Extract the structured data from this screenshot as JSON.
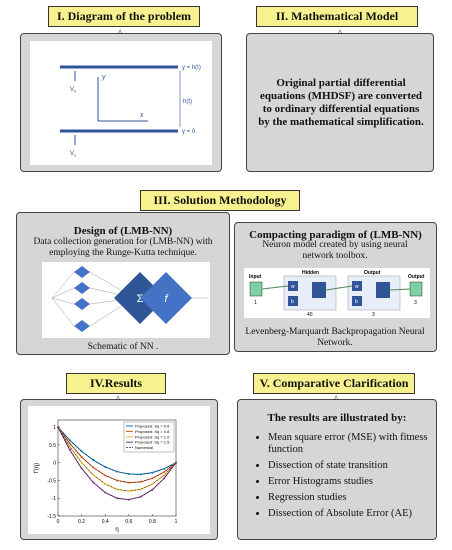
{
  "panels": {
    "problem": {
      "title": "I. Diagram of the problem",
      "top_label": "y = h(t)",
      "bottom_label": "y = 0",
      "gap_label": "h(t)",
      "y_axis": "y",
      "x_axis": "x",
      "top_velocity": {
        "symbol": "V",
        "subscript": "h"
      },
      "bottom_velocity": {
        "symbol": "V",
        "subscript": "o"
      }
    },
    "model": {
      "title": "II. Mathematical Model",
      "text": "Original partial differential equations (MHDSF) are converted to ordinary differential equations by the mathematical simplification."
    },
    "methodology": {
      "title": "III. Solution Methodology",
      "design": {
        "heading": "Design of (LMB-NN)",
        "text": "Data collection generation for (LMB-NN) with employing the Runge-Kutta technique.",
        "sum_symbol": "Σ",
        "activation_symbol": "f",
        "caption": "Schematic of NN ."
      },
      "paradigm": {
        "heading": "Compacting paradigm of (LMB-NN)",
        "text": "Neuron model created by using neural network toolbox.",
        "input_label": "Input",
        "hidden_label": "Hidden",
        "output_layer_label": "Output",
        "output_label": "Output",
        "weight": "w",
        "bias": "b",
        "input_size": "1",
        "hidden_size": "40",
        "output_layer_size": "3",
        "output_size": "3",
        "caption": "Levenberg-Marquardt Backpropagation Neural Network."
      }
    },
    "results": {
      "title": "IV.Results",
      "plot": {
        "xlabel": "η",
        "ylabel": "f'(η)",
        "xlim": [
          0,
          1
        ],
        "ylim": [
          -1.5,
          1.2
        ],
        "xticks": [
          0,
          0.2,
          0.4,
          0.6,
          0.8,
          1
        ],
        "yticks": [
          -1.5,
          -1,
          -0.5,
          0,
          0.5,
          1
        ],
        "x": [
          0,
          0.1,
          0.2,
          0.3,
          0.4,
          0.5,
          0.6,
          0.7,
          0.8,
          0.9,
          1
        ],
        "series": [
          {
            "name": "Proposed: Sq = 0.6",
            "color": "#0072bd",
            "values": [
              1,
              0.63,
              0.32,
              0.07,
              -0.12,
              -0.25,
              -0.32,
              -0.33,
              -0.28,
              -0.17,
              0
            ]
          },
          {
            "name": "Proposed: Sq = 0.8",
            "color": "#d95319",
            "values": [
              1,
              0.54,
              0.16,
              -0.14,
              -0.36,
              -0.5,
              -0.56,
              -0.54,
              -0.44,
              -0.26,
              0
            ]
          },
          {
            "name": "Proposed: Sq = 1.0",
            "color": "#edb120",
            "values": [
              1,
              0.45,
              0,
              -0.35,
              -0.6,
              -0.75,
              -0.8,
              -0.75,
              -0.6,
              -0.35,
              0
            ]
          },
          {
            "name": "Proposed: Sq = 1.5",
            "color": "#7e2f8e",
            "values": [
              1,
              0.36,
              -0.16,
              -0.56,
              -0.84,
              -1,
              -1.04,
              -0.96,
              -0.76,
              -0.44,
              0
            ]
          }
        ],
        "numerical_label": "Numerical"
      }
    },
    "comparison": {
      "title": "V. Comparative Clarification",
      "heading": "The results are illustrated by:",
      "items": [
        "Mean square error (MSE) with fitness function",
        "Dissection of state transition",
        "Error Histograms studies",
        "Regression studies",
        "Dissection of Absolute Error (AE)"
      ]
    }
  }
}
